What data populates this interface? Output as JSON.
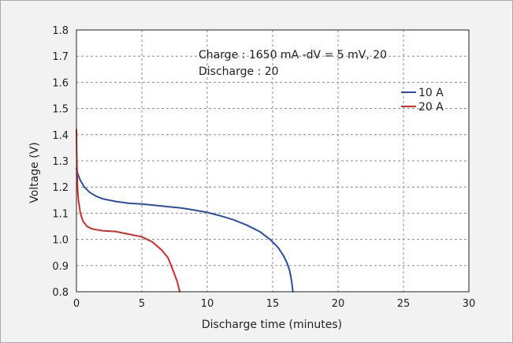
{
  "chart_data": {
    "type": "line",
    "xlabel": "Discharge time (minutes)",
    "ylabel": "Voltage (V)",
    "xlim": [
      0,
      30
    ],
    "ylim": [
      0.8,
      1.8
    ],
    "xticks": [
      0,
      5,
      10,
      15,
      20,
      25,
      30
    ],
    "yticks": [
      0.8,
      0.9,
      1.0,
      1.1,
      1.2,
      1.3,
      1.4,
      1.5,
      1.6,
      1.7,
      1.8
    ],
    "xtick_labels": [
      "0",
      "5",
      "10",
      "15",
      "20",
      "25",
      "30"
    ],
    "ytick_labels": [
      "0.8",
      "0.9",
      "1.0",
      "1.1",
      "1.2",
      "1.3",
      "1.4",
      "1.5",
      "1.6",
      "1.7",
      "1.8"
    ],
    "grid": true,
    "legend_position": "top-right",
    "annotations": [
      "Charge : 1650 mA -dV = 5 mV, 20",
      "Discharge : 20"
    ],
    "series": [
      {
        "name": "10 A",
        "color": "#2a4ea6",
        "x": [
          0,
          0.1,
          0.3,
          0.6,
          1.0,
          1.5,
          2.0,
          3.0,
          4.0,
          5.0,
          6.0,
          7.0,
          8.0,
          9.0,
          10.0,
          11.0,
          12.0,
          13.0,
          14.0,
          14.8,
          15.4,
          15.8,
          16.1,
          16.3,
          16.45,
          16.55
        ],
        "y": [
          1.27,
          1.25,
          1.225,
          1.2,
          1.18,
          1.165,
          1.155,
          1.145,
          1.138,
          1.135,
          1.13,
          1.125,
          1.12,
          1.112,
          1.103,
          1.09,
          1.075,
          1.055,
          1.03,
          1.0,
          0.97,
          0.94,
          0.91,
          0.88,
          0.84,
          0.8
        ]
      },
      {
        "name": "20 A",
        "color": "#d42a2a",
        "x": [
          0,
          0.03,
          0.08,
          0.15,
          0.3,
          0.5,
          0.8,
          1.2,
          2.0,
          3.0,
          4.0,
          5.0,
          5.8,
          6.5,
          7.0,
          7.4,
          7.7,
          7.9
        ],
        "y": [
          1.42,
          1.3,
          1.2,
          1.15,
          1.1,
          1.07,
          1.05,
          1.04,
          1.033,
          1.03,
          1.02,
          1.01,
          0.99,
          0.96,
          0.93,
          0.88,
          0.84,
          0.8
        ]
      }
    ]
  }
}
